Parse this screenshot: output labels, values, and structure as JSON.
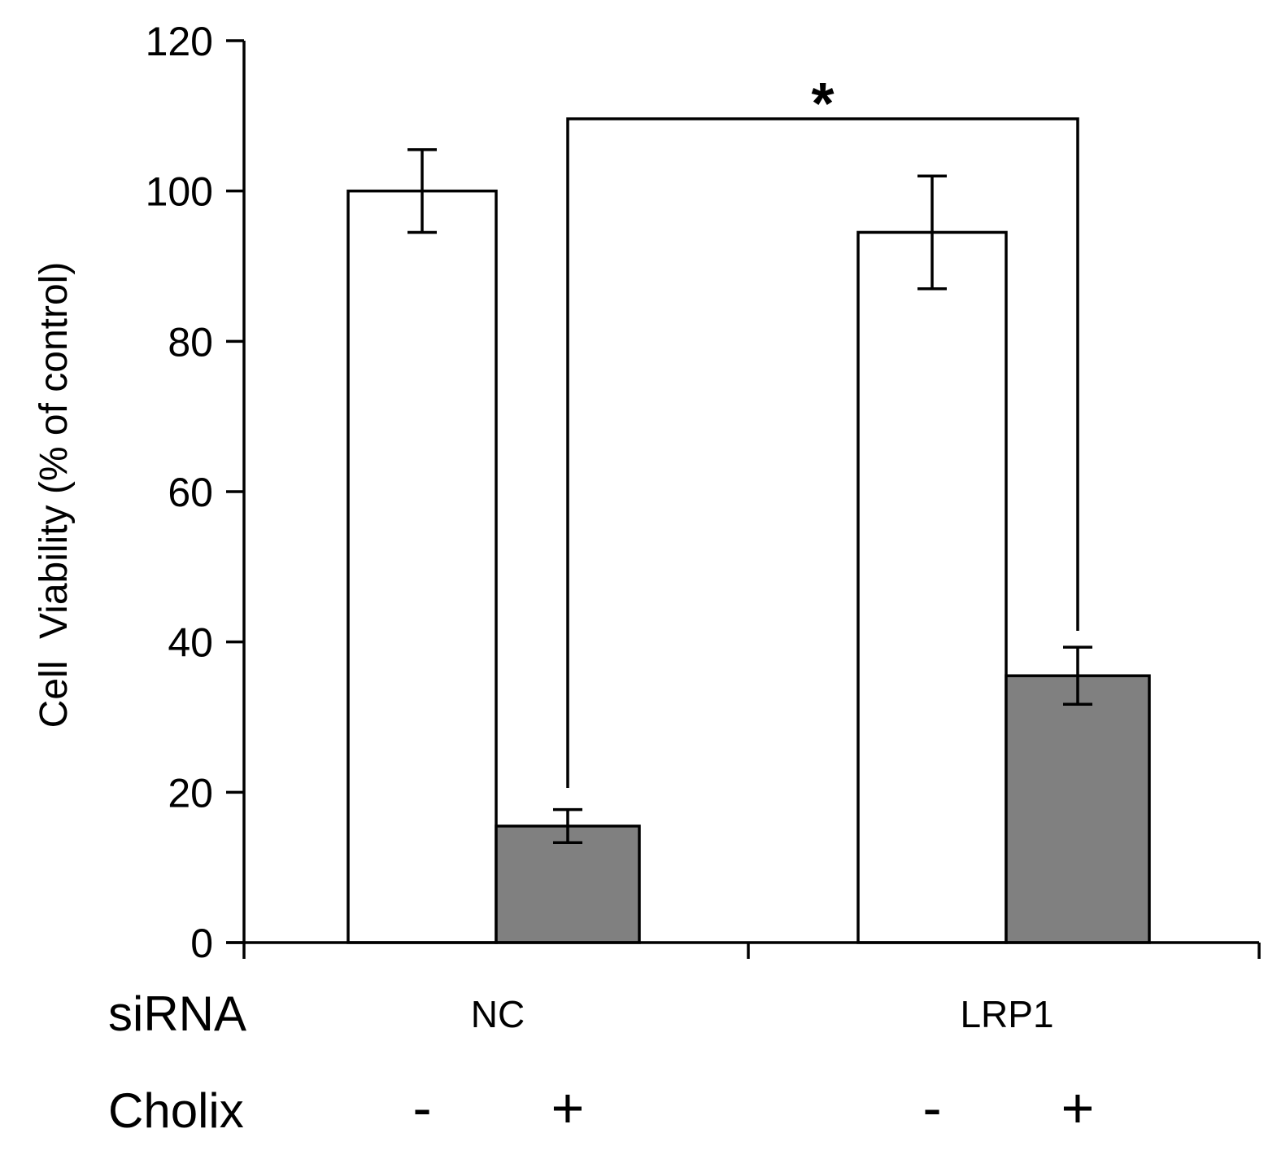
{
  "chart_data": {
    "type": "bar",
    "title": "",
    "xlabel": "",
    "ylabel": "Cell  Viability (% of control)",
    "ylim": [
      0,
      120
    ],
    "yticks": [
      0,
      20,
      40,
      60,
      80,
      100,
      120
    ],
    "grid": false,
    "groups": [
      "NC",
      "LRP1"
    ],
    "series": [
      {
        "name": "Cholix -",
        "sign": "-",
        "color": "#ffffff",
        "values": [
          100,
          94.5
        ],
        "errors": [
          5.5,
          7.5
        ]
      },
      {
        "name": "Cholix +",
        "sign": "+",
        "color": "#808080",
        "values": [
          15.5,
          35.5
        ],
        "errors": [
          2.2,
          3.8
        ]
      }
    ],
    "row_labels": {
      "sirna": "siRNA",
      "cholix": "Cholix"
    },
    "significance": {
      "label": "*",
      "from": "NC +",
      "to": "LRP1 +"
    }
  }
}
